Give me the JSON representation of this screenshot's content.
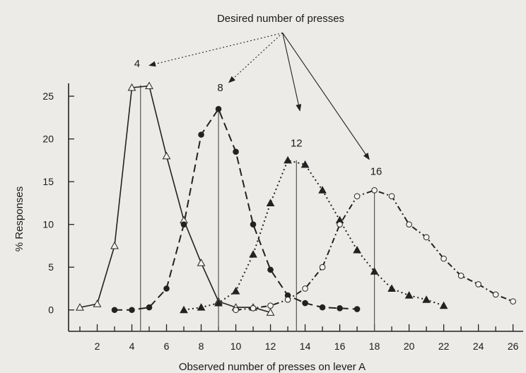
{
  "chart_data": {
    "type": "line",
    "title": "",
    "xlabel": "Observed number of presses on lever A",
    "ylabel": "% Responses",
    "annotation_text": "Desired number of presses",
    "xlim": [
      1,
      26.3
    ],
    "ylim": [
      -2.5,
      26.5
    ],
    "x_ticks": [
      2,
      4,
      6,
      8,
      10,
      12,
      14,
      16,
      18,
      20,
      22,
      24,
      26
    ],
    "x_tick_labels": [
      "2",
      "4",
      "6",
      "8",
      "10",
      "12",
      "14",
      "16",
      "18",
      "20",
      "22",
      "24",
      "26"
    ],
    "y_ticks": [
      0,
      5,
      10,
      15,
      20,
      25
    ],
    "y_tick_labels": [
      "0",
      "5",
      "10",
      "15",
      "20",
      "25"
    ],
    "grid": false,
    "legend": "none",
    "targets": [
      {
        "label": "4",
        "line_x": 4.5,
        "line_top": 26.3,
        "label_x": 4.3,
        "label_y": 28.4
      },
      {
        "label": "8",
        "line_x": 9.0,
        "line_top": 23.3,
        "label_x": 9.1,
        "label_y": 25.6
      },
      {
        "label": "12",
        "line_x": 13.5,
        "line_top": 17.5,
        "label_x": 13.5,
        "label_y": 19.1
      },
      {
        "label": "16",
        "line_x": 18.0,
        "line_top": 13.8,
        "label_x": 18.1,
        "label_y": 15.8
      }
    ],
    "annotation_anchor": {
      "x": 12.7,
      "y": 32.4
    },
    "annotation_arrows": [
      {
        "x": 5.0,
        "y": 28.6,
        "dash": "dotted"
      },
      {
        "x": 9.6,
        "y": 26.6,
        "dash": "dotted"
      },
      {
        "x": 13.7,
        "y": 23.3,
        "dash": "solid"
      },
      {
        "x": 17.7,
        "y": 17.6,
        "dash": "solid"
      }
    ],
    "series": [
      {
        "name": "4",
        "marker": "open-triangle",
        "line": "solid",
        "x": [
          1,
          2,
          3,
          4,
          5,
          6,
          7,
          8,
          9,
          10,
          11,
          12
        ],
        "y": [
          0.3,
          0.7,
          7.5,
          26.0,
          26.2,
          18.0,
          10.5,
          5.5,
          1.0,
          0.3,
          0.3,
          -0.3
        ]
      },
      {
        "name": "8",
        "marker": "filled-circle",
        "line": "dashed",
        "x": [
          3,
          4,
          5,
          6,
          7,
          8,
          9,
          10,
          11,
          12,
          13,
          14,
          15,
          16,
          17
        ],
        "y": [
          0.0,
          0.0,
          0.3,
          2.5,
          10.0,
          20.5,
          23.5,
          18.5,
          10.0,
          4.7,
          1.7,
          0.8,
          0.3,
          0.2,
          0.1
        ]
      },
      {
        "name": "12",
        "marker": "filled-triangle",
        "line": "dotted",
        "x": [
          7,
          8,
          9,
          10,
          11,
          12,
          13,
          14,
          15,
          16,
          17,
          18,
          19,
          20,
          21,
          22
        ],
        "y": [
          0.0,
          0.3,
          0.8,
          2.2,
          6.5,
          12.5,
          17.5,
          17.0,
          14.0,
          10.5,
          7.0,
          4.5,
          2.5,
          1.7,
          1.2,
          0.5
        ]
      },
      {
        "name": "16",
        "marker": "open-circle",
        "line": "dash-dot",
        "x": [
          10,
          11,
          12,
          13,
          14,
          15,
          16,
          17,
          18,
          19,
          20,
          21,
          22,
          23,
          24,
          25,
          26
        ],
        "y": [
          0.0,
          0.2,
          0.5,
          1.2,
          2.5,
          5.0,
          10.0,
          13.3,
          14.0,
          13.3,
          10.0,
          8.5,
          6.0,
          4.0,
          3.0,
          1.8,
          1.0
        ]
      }
    ]
  }
}
